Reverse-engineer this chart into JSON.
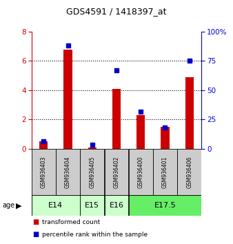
{
  "title": "GDS4591 / 1418397_at",
  "samples": [
    "GSM936403",
    "GSM936404",
    "GSM936405",
    "GSM936402",
    "GSM936400",
    "GSM936401",
    "GSM936406"
  ],
  "transformed_count": [
    0.5,
    6.8,
    0.1,
    4.1,
    2.3,
    1.5,
    4.9
  ],
  "percentile_rank": [
    6.5,
    88,
    3.5,
    67,
    32,
    18,
    75
  ],
  "age_groups": [
    {
      "label": "E14",
      "samples": [
        0,
        1
      ],
      "color": "#ccffcc"
    },
    {
      "label": "E15",
      "samples": [
        2
      ],
      "color": "#ccffcc"
    },
    {
      "label": "E16",
      "samples": [
        3
      ],
      "color": "#ccffcc"
    },
    {
      "label": "E17.5",
      "samples": [
        4,
        5,
        6
      ],
      "color": "#66ee66"
    }
  ],
  "bar_color": "#cc0000",
  "dot_color": "#0000cc",
  "left_axis_color": "#cc0000",
  "right_axis_color": "#0000cc",
  "ylim_left": [
    0,
    8
  ],
  "ylim_right": [
    0,
    100
  ],
  "yticks_left": [
    0,
    2,
    4,
    6,
    8
  ],
  "yticks_right": [
    0,
    25,
    50,
    75,
    100
  ],
  "bar_width": 0.35,
  "dot_size": 22,
  "sample_box_color": "#cccccc",
  "light_green": "#ccffcc",
  "bright_green": "#66ee66"
}
